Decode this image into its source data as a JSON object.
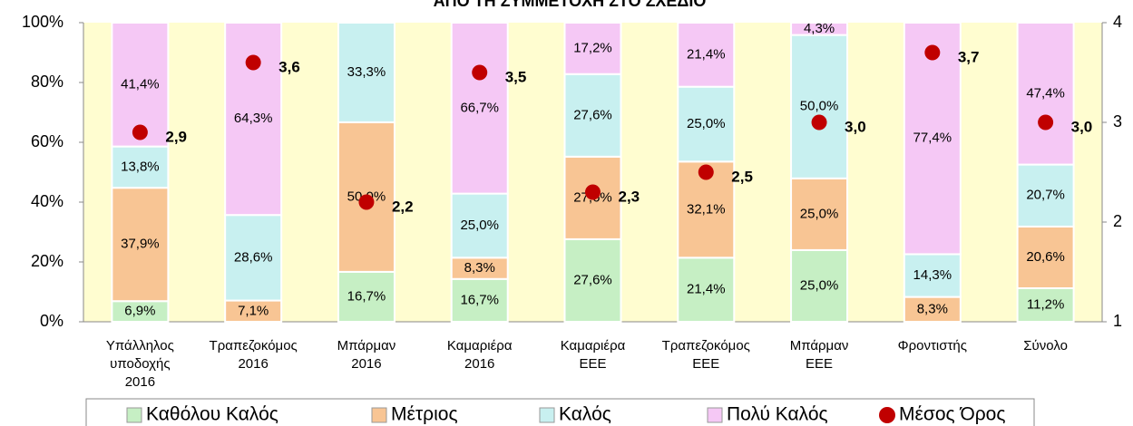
{
  "chart_data": {
    "type": "bar",
    "stacking": "percent",
    "title": "ΑΠΟ ΤΗ ΣΥΜΜΕΤΟΧΗ ΣΤΟ ΣΧΕΔΙΟ",
    "categories": [
      "Υπάλληλος\nυποδοχής\n2016",
      "Τραπεζοκόμος\n2016",
      "Μπάρμαν\n2016",
      "Καμαριέρα\n2016",
      "Καμαριέρα\nΕΕΕ",
      "Τραπεζοκόμος\nΕΕΕ",
      "Μπάρμαν\nΕΕΕ",
      "Φροντιστής",
      "Σύνολο"
    ],
    "series": [
      {
        "name": "Καθόλου Καλός",
        "color": "#c6efc4",
        "values": [
          6.9,
          0,
          16.7,
          16.7,
          27.6,
          21.4,
          25.0,
          0,
          11.2
        ],
        "value_labels": [
          "6,9%",
          null,
          "16,7%",
          "16,7%",
          "27,6%",
          "21,4%",
          "25,0%",
          null,
          "11,2%"
        ]
      },
      {
        "name": "Μέτριος",
        "color": "#f8c594",
        "values": [
          37.9,
          7.1,
          50.0,
          8.3,
          27.6,
          32.1,
          25.0,
          8.3,
          20.6
        ],
        "value_labels": [
          "37,9%",
          "7,1%",
          "50,0%",
          "8,3%",
          "27,6%",
          "32,1%",
          "25,0%",
          "8,3%",
          "20,6%"
        ]
      },
      {
        "name": "Καλός",
        "color": "#c8f0f0",
        "values": [
          13.8,
          28.6,
          33.3,
          25.0,
          27.6,
          25.0,
          50.0,
          14.3,
          20.7
        ],
        "value_labels": [
          "13,8%",
          "28,6%",
          "33,3%",
          "25,0%",
          "27,6%",
          "25,0%",
          "50,0%",
          "14,3%",
          "20,7%"
        ]
      },
      {
        "name": "Πολύ Καλός",
        "color": "#f5c8f5",
        "values": [
          41.4,
          64.3,
          0,
          66.7,
          17.2,
          21.4,
          4.3,
          77.4,
          47.4
        ],
        "value_labels": [
          "41,4%",
          "64,3%",
          null,
          "66,7%",
          "17,2%",
          "21,4%",
          "4,3%",
          "77,4%",
          "47,4%"
        ]
      },
      {
        "name": "Μέσος Όρος",
        "type": "scatter",
        "axis": "y2",
        "color": "#c00000",
        "values": [
          2.9,
          3.6,
          2.2,
          3.5,
          2.3,
          2.5,
          3.0,
          3.7,
          3.0
        ],
        "value_labels": [
          "2,9",
          "3,6",
          "2,2",
          "3,5",
          "2,3",
          "2,5",
          "3,0",
          "3,7",
          "3,0"
        ]
      }
    ],
    "ylim": [
      0,
      100
    ],
    "yticks": [
      {
        "value": 0,
        "label": "0%"
      },
      {
        "value": 20,
        "label": "20%"
      },
      {
        "value": 40,
        "label": "40%"
      },
      {
        "value": 60,
        "label": "60%"
      },
      {
        "value": 80,
        "label": "80%"
      },
      {
        "value": 100,
        "label": "100%"
      }
    ],
    "y2lim": [
      1,
      4
    ],
    "y2ticks": [
      1,
      2,
      3,
      4
    ],
    "plot_background": "#fffdd0",
    "legend": "bottom"
  }
}
